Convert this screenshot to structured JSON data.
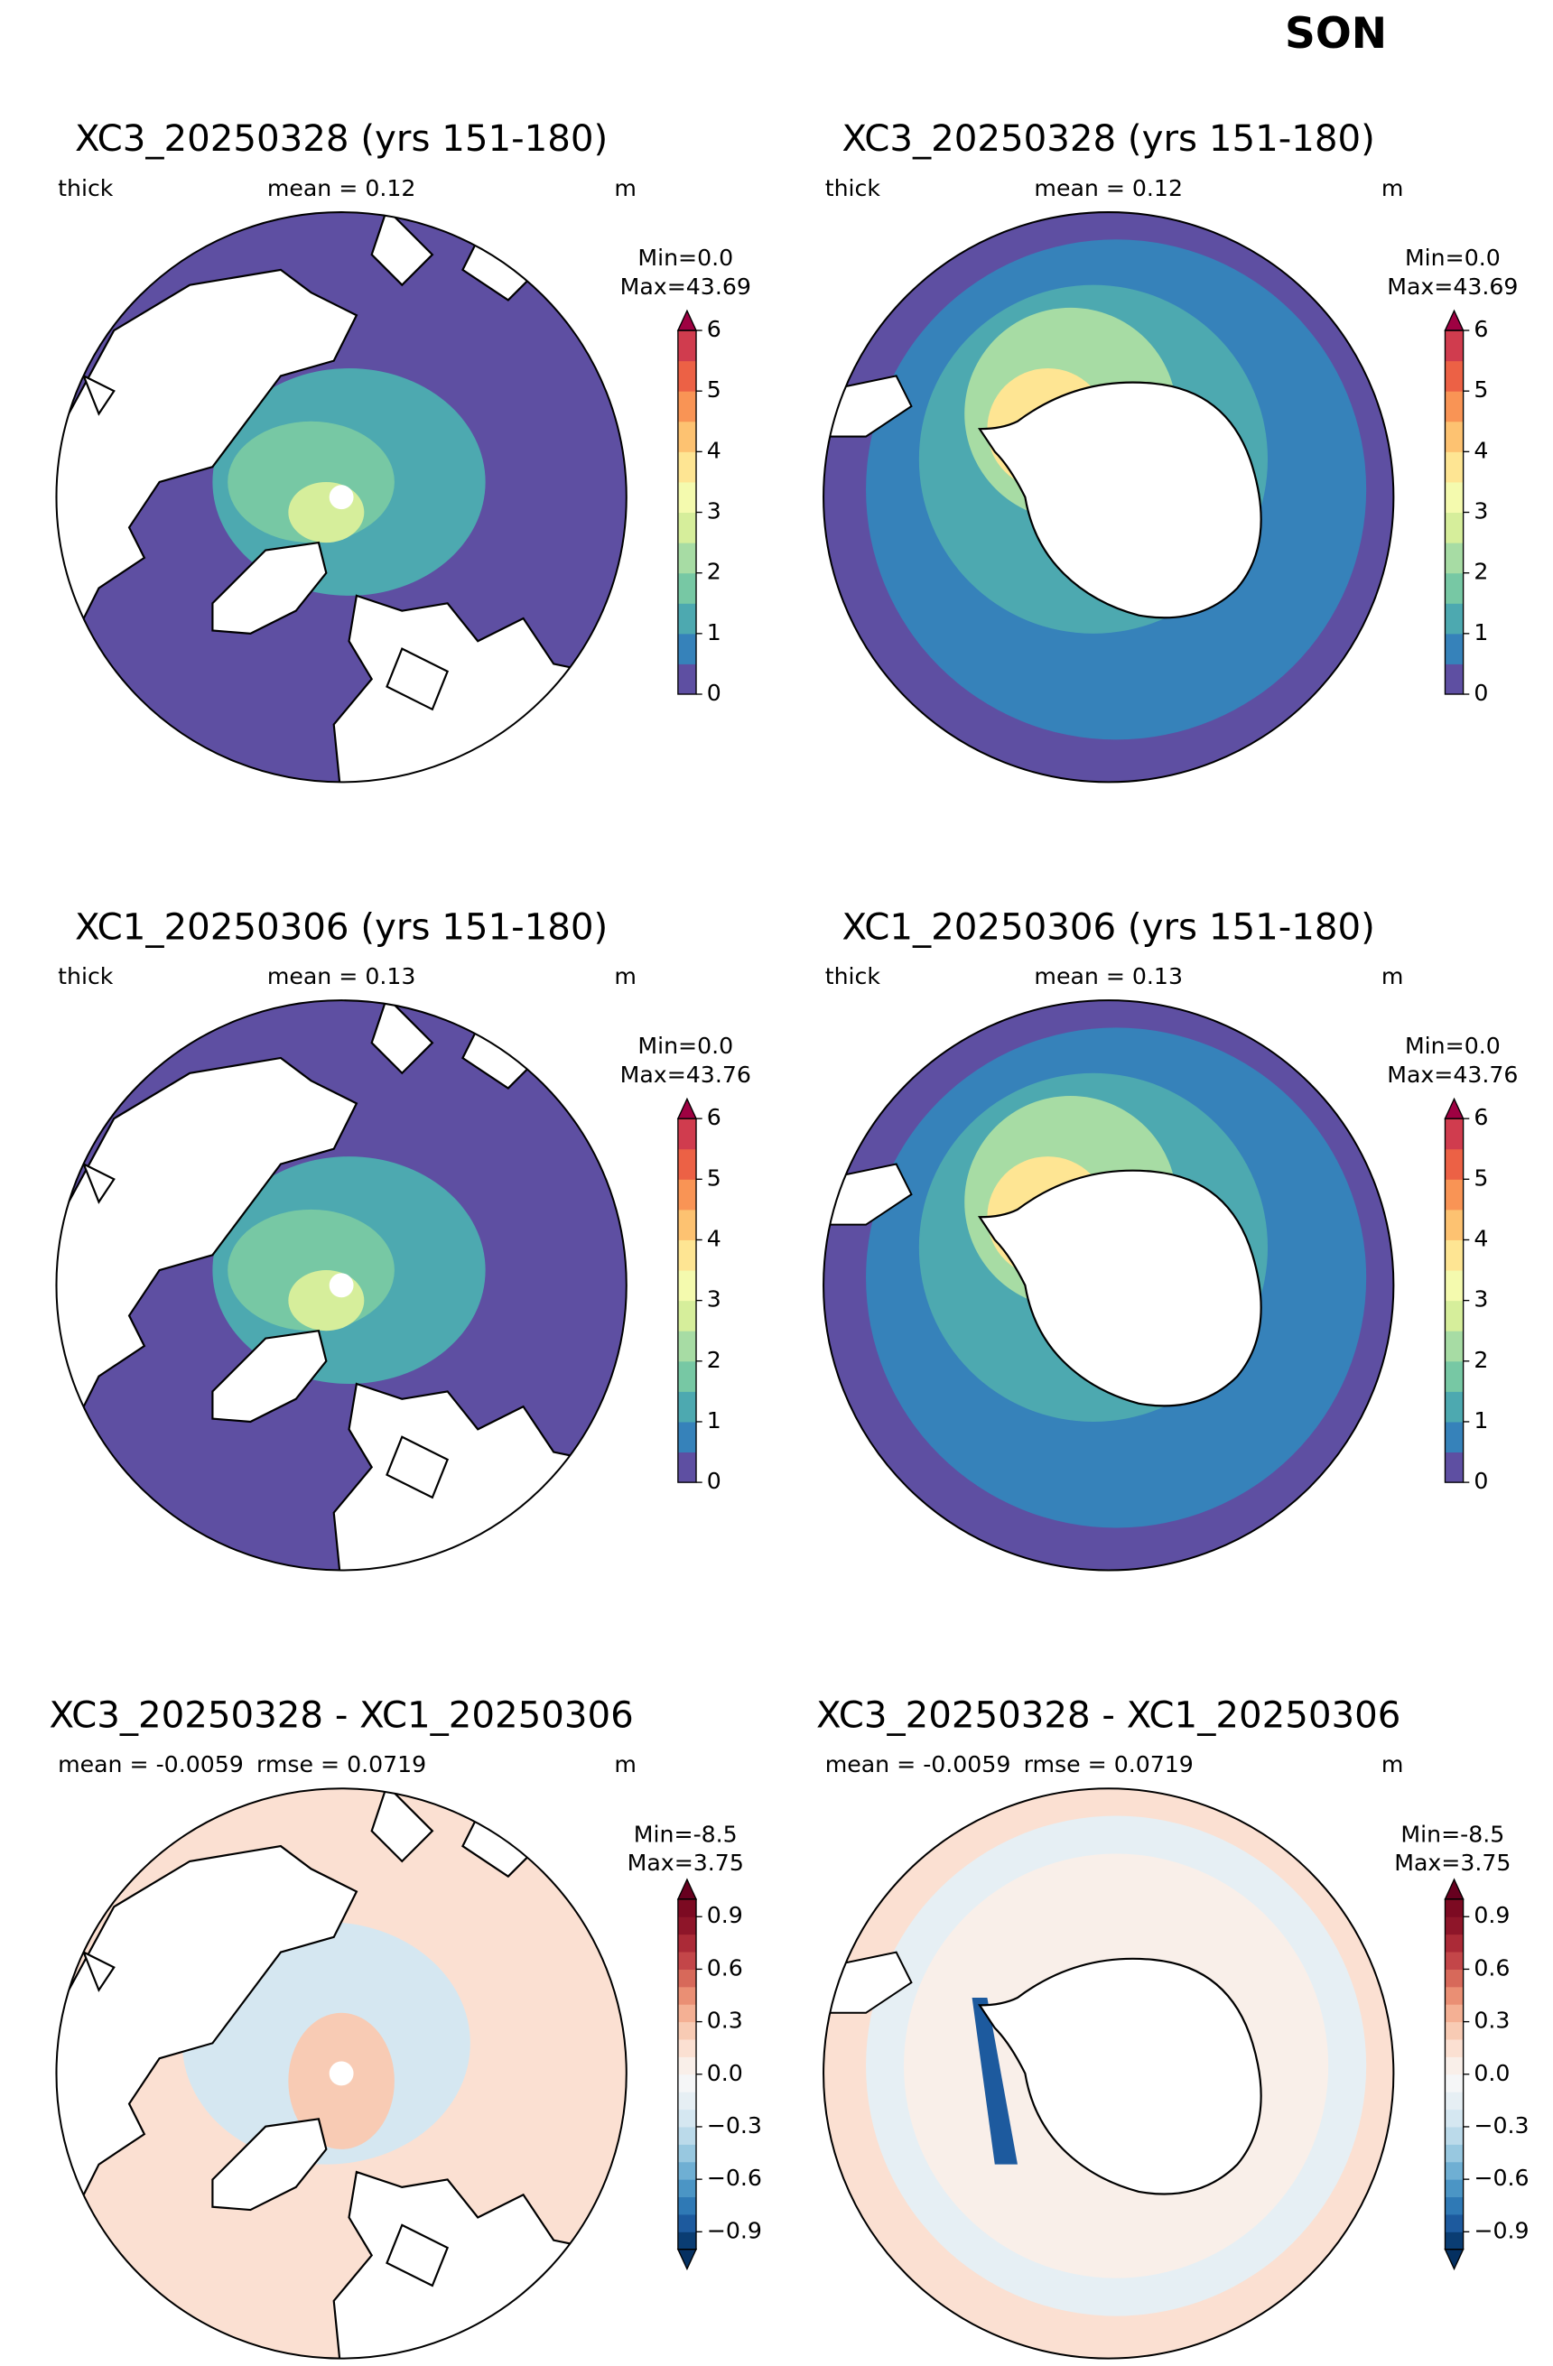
{
  "suptitle": "SON",
  "panels": [
    {
      "title": "XC3_20250328 (yrs 151-180)",
      "left": "thick",
      "center": "mean = 0.12",
      "unit": "m",
      "min": "Min=0.0",
      "max": "Max=43.69",
      "colorbar": {
        "lim": [
          0,
          6
        ],
        "ticks": [
          0,
          1,
          2,
          3,
          4,
          5,
          6
        ],
        "extend": "max",
        "colors": [
          "#5e4fa2",
          "#3682ba",
          "#4da9b0",
          "#77c8a4",
          "#a7dca4",
          "#d6ee9b",
          "#f4faae",
          "#fee593",
          "#fdc271",
          "#f99455",
          "#ec6145",
          "#d03c4e"
        ],
        "over": "#9e0142"
      }
    },
    {
      "title": "XC3_20250328 (yrs 151-180)",
      "left": "thick",
      "center": "mean = 0.12",
      "unit": "m",
      "min": "Min=0.0",
      "max": "Max=43.69",
      "colorbar": {
        "lim": [
          0,
          6
        ],
        "ticks": [
          0,
          1,
          2,
          3,
          4,
          5,
          6
        ],
        "extend": "max",
        "colors": [
          "#5e4fa2",
          "#3682ba",
          "#4da9b0",
          "#77c8a4",
          "#a7dca4",
          "#d6ee9b",
          "#f4faae",
          "#fee593",
          "#fdc271",
          "#f99455",
          "#ec6145",
          "#d03c4e"
        ],
        "over": "#9e0142"
      }
    },
    {
      "title": "XC1_20250306 (yrs 151-180)",
      "left": "thick",
      "center": "mean = 0.13",
      "unit": "m",
      "min": "Min=0.0",
      "max": "Max=43.76",
      "colorbar": {
        "lim": [
          0,
          6
        ],
        "ticks": [
          0,
          1,
          2,
          3,
          4,
          5,
          6
        ],
        "extend": "max",
        "colors": [
          "#5e4fa2",
          "#3682ba",
          "#4da9b0",
          "#77c8a4",
          "#a7dca4",
          "#d6ee9b",
          "#f4faae",
          "#fee593",
          "#fdc271",
          "#f99455",
          "#ec6145",
          "#d03c4e"
        ],
        "over": "#9e0142"
      }
    },
    {
      "title": "XC1_20250306 (yrs 151-180)",
      "left": "thick",
      "center": "mean = 0.13",
      "unit": "m",
      "min": "Min=0.0",
      "max": "Max=43.76",
      "colorbar": {
        "lim": [
          0,
          6
        ],
        "ticks": [
          0,
          1,
          2,
          3,
          4,
          5,
          6
        ],
        "extend": "max",
        "colors": [
          "#5e4fa2",
          "#3682ba",
          "#4da9b0",
          "#77c8a4",
          "#a7dca4",
          "#d6ee9b",
          "#f4faae",
          "#fee593",
          "#fdc271",
          "#f99455",
          "#ec6145",
          "#d03c4e"
        ],
        "over": "#9e0142"
      }
    },
    {
      "title": "XC3_20250328 - XC1_20250306",
      "left": "mean = -0.0059",
      "center": "rmse = 0.0719",
      "unit": "m",
      "min": "Min=-8.5",
      "max": "Max=3.75",
      "colorbar": {
        "lim": [
          -1,
          1
        ],
        "ticks": [
          {
            "value": -0.9,
            "label": "−0.9"
          },
          {
            "value": -0.6,
            "label": "−0.6"
          },
          {
            "value": -0.3,
            "label": "−0.3"
          },
          {
            "value": 0,
            "label": "0.0"
          },
          0.3,
          0.6,
          0.9
        ],
        "extend": "both",
        "colors": [
          "#0a3d73",
          "#1d5a9e",
          "#2f79b5",
          "#4b95c5",
          "#6fafd3",
          "#98c8e0",
          "#bbdaea",
          "#d5e7f1",
          "#e6eff4",
          "#f5f6f7",
          "#f9efe9",
          "#fbe0d2",
          "#f8cbb4",
          "#f4b094",
          "#ea8f74",
          "#d7695a",
          "#c34649",
          "#ab2a37",
          "#8e1529",
          "#7c0a22"
        ],
        "under": "#053061",
        "over": "#67001f"
      }
    },
    {
      "title": "XC3_20250328 - XC1_20250306",
      "left": "mean = -0.0059",
      "center": "rmse = 0.0719",
      "unit": "m",
      "min": "Min=-8.5",
      "max": "Max=3.75",
      "colorbar": {
        "lim": [
          -1,
          1
        ],
        "ticks": [
          {
            "value": -0.9,
            "label": "−0.9"
          },
          {
            "value": -0.6,
            "label": "−0.6"
          },
          {
            "value": -0.3,
            "label": "−0.3"
          },
          {
            "value": 0,
            "label": "0.0"
          },
          0.3,
          0.6,
          0.9
        ],
        "extend": "both",
        "colors": [
          "#0a3d73",
          "#1d5a9e",
          "#2f79b5",
          "#4b95c5",
          "#6fafd3",
          "#98c8e0",
          "#bbdaea",
          "#d5e7f1",
          "#e6eff4",
          "#f5f6f7",
          "#f9efe9",
          "#fbe0d2",
          "#f8cbb4",
          "#f4b094",
          "#ea8f74",
          "#d7695a",
          "#c34649",
          "#ab2a37",
          "#8e1529",
          "#7c0a22"
        ],
        "under": "#053061",
        "over": "#67001f"
      }
    }
  ]
}
